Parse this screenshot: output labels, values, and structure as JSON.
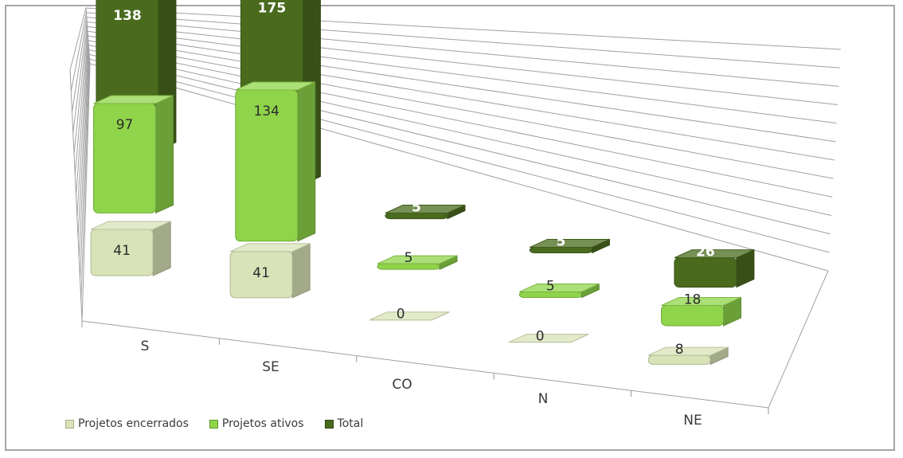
{
  "chart_data": {
    "type": "bar",
    "categories": [
      "S",
      "SE",
      "CO",
      "N",
      "NE"
    ],
    "series": [
      {
        "name": "Projetos encerrados",
        "values": [
          41,
          41,
          0,
          0,
          8
        ],
        "color": "#d9e3b8"
      },
      {
        "name": "Projetos ativos",
        "values": [
          97,
          134,
          5,
          5,
          18
        ],
        "color": "#8fd44a"
      },
      {
        "name": "Total",
        "values": [
          138,
          175,
          5,
          5,
          26
        ],
        "color": "#4a6b1e"
      }
    ],
    "title": "",
    "xlabel": "",
    "ylabel": "",
    "ylim": [
      0,
      240
    ],
    "grid": true,
    "legend": "bottom-left",
    "style": "3d-clustered-column"
  }
}
